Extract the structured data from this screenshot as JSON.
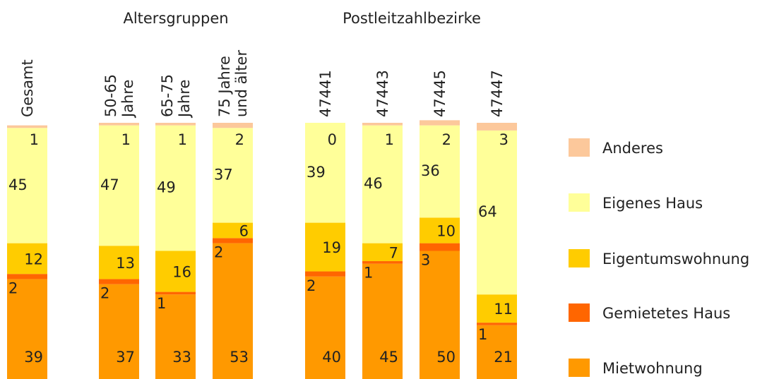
{
  "chart_data": {
    "type": "bar",
    "stacked": true,
    "groups": [
      {
        "label": "Altersgruppen"
      },
      {
        "label": "Postleitzahlbezirke"
      }
    ],
    "categories": [
      "Gesamt",
      "50-65\nJahre",
      "65-75\nJahre",
      "75 Jahre\nund älter",
      "47441",
      "47443",
      "47445",
      "47447"
    ],
    "ylim": [
      0,
      100
    ],
    "series": [
      {
        "name": "Mietwohnung",
        "color": "#ff9900",
        "values": [
          39,
          37,
          33,
          53,
          40,
          45,
          50,
          21
        ]
      },
      {
        "name": "Gemietetes Haus",
        "color": "#ff6600",
        "values": [
          2,
          2,
          1,
          2,
          2,
          1,
          3,
          1
        ]
      },
      {
        "name": "Eigentumswohnung",
        "color": "#ffcc00",
        "values": [
          12,
          13,
          16,
          6,
          19,
          7,
          10,
          11
        ]
      },
      {
        "name": "Eigenes Haus",
        "color": "#ffff99",
        "values": [
          45,
          47,
          49,
          37,
          39,
          46,
          36,
          64
        ]
      },
      {
        "name": "Anderes",
        "color": "#fcc89b",
        "values": [
          1,
          1,
          1,
          2,
          0,
          1,
          2,
          3
        ]
      }
    ]
  }
}
